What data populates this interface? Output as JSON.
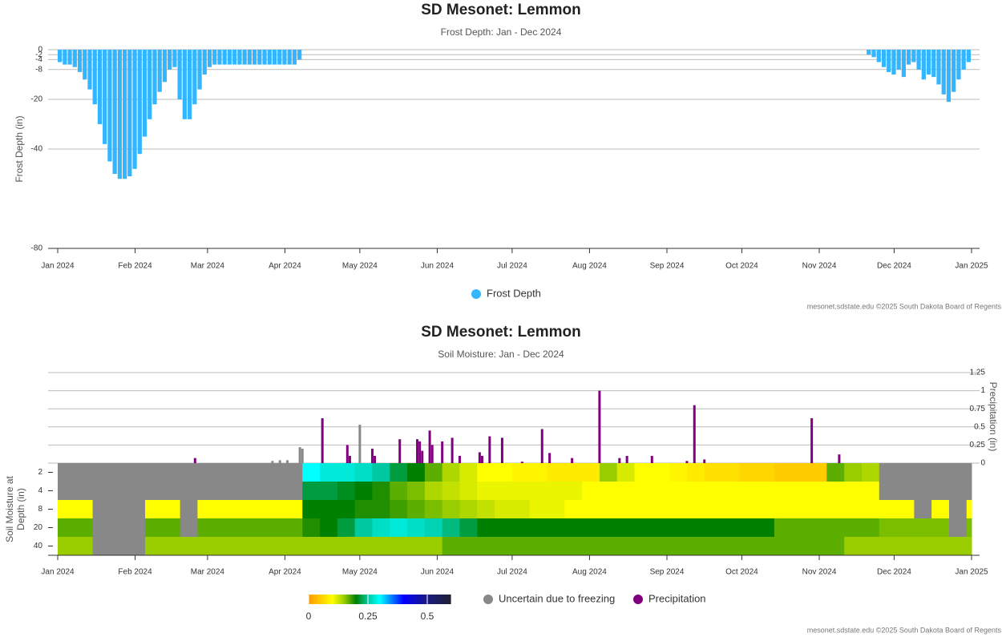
{
  "chart_data": [
    {
      "type": "bar",
      "title": "SD Mesonet: Lemmon",
      "subtitle": "Frost Depth: Jan - Dec 2024",
      "ylabel": "Frost Depth (in)",
      "xlim": [
        0,
        366
      ],
      "xticks": [
        {
          "value": 0,
          "label": "Jan 2024"
        },
        {
          "value": 31,
          "label": "Feb 2024"
        },
        {
          "value": 60,
          "label": "Mar 2024"
        },
        {
          "value": 91,
          "label": "Apr 2024"
        },
        {
          "value": 121,
          "label": "May 2024"
        },
        {
          "value": 152,
          "label": "Jun 2024"
        },
        {
          "value": 182,
          "label": "Jul 2024"
        },
        {
          "value": 213,
          "label": "Aug 2024"
        },
        {
          "value": 244,
          "label": "Sep 2024"
        },
        {
          "value": 274,
          "label": "Oct 2024"
        },
        {
          "value": 305,
          "label": "Nov 2024"
        },
        {
          "value": 335,
          "label": "Dec 2024"
        },
        {
          "value": 366,
          "label": "Jan 2025"
        }
      ],
      "ylim": [
        -80,
        0
      ],
      "yticks": [
        0,
        -2,
        -4,
        -8,
        -20,
        -40,
        -80
      ],
      "grid": true,
      "x": [
        0,
        2,
        4,
        6,
        8,
        10,
        12,
        14,
        16,
        18,
        20,
        22,
        24,
        26,
        28,
        30,
        32,
        34,
        36,
        38,
        40,
        42,
        44,
        46,
        48,
        50,
        52,
        54,
        56,
        58,
        60,
        62,
        64,
        66,
        68,
        70,
        72,
        74,
        76,
        78,
        80,
        82,
        84,
        86,
        88,
        90,
        92,
        94,
        96,
        324,
        326,
        328,
        330,
        332,
        334,
        336,
        338,
        340,
        342,
        344,
        346,
        348,
        350,
        352,
        354,
        356,
        358,
        360,
        362,
        364
      ],
      "series": [
        {
          "name": "Frost Depth",
          "color": "#33b5ff",
          "values": [
            -5,
            -6,
            -6,
            -7,
            -9,
            -12,
            -16,
            -22,
            -30,
            -38,
            -45,
            -50,
            -52,
            -52,
            -51,
            -48,
            -42,
            -35,
            -28,
            -22,
            -17,
            -13,
            -8,
            -7,
            -20,
            -28,
            -28,
            -22,
            -16,
            -10,
            -7,
            -6,
            -6,
            -6,
            -6,
            -6,
            -6,
            -6,
            -6,
            -6,
            -6,
            -6,
            -6,
            -6,
            -6,
            -6,
            -6,
            -6,
            -4,
            -2,
            -3,
            -5,
            -7,
            -9,
            -10,
            -8,
            -11,
            -6,
            -5,
            -8,
            -12,
            -10,
            -11,
            -14,
            -18,
            -21,
            -17,
            -12,
            -8,
            -5
          ]
        }
      ],
      "credit": "mesonet.sdstate.edu ©2025 South Dakota Board of Regents"
    },
    {
      "type": "heatmap",
      "title": "SD Mesonet: Lemmon",
      "subtitle": "Soil Moisture: Jan - Dec 2024",
      "ylabel": [
        "Soil Moisture at",
        "Depth (in)"
      ],
      "y2label": "Precipitation (in)",
      "xlim": [
        0,
        366
      ],
      "xticks": [
        {
          "value": 0,
          "label": "Jan 2024"
        },
        {
          "value": 31,
          "label": "Feb 2024"
        },
        {
          "value": 60,
          "label": "Mar 2024"
        },
        {
          "value": 91,
          "label": "Apr 2024"
        },
        {
          "value": 121,
          "label": "May 2024"
        },
        {
          "value": 152,
          "label": "Jun 2024"
        },
        {
          "value": 182,
          "label": "Jul 2024"
        },
        {
          "value": 213,
          "label": "Aug 2024"
        },
        {
          "value": 244,
          "label": "Sep 2024"
        },
        {
          "value": 274,
          "label": "Oct 2024"
        },
        {
          "value": 305,
          "label": "Nov 2024"
        },
        {
          "value": 335,
          "label": "Dec 2024"
        },
        {
          "value": 366,
          "label": "Jan 2025"
        }
      ],
      "categories": [
        "2",
        "4",
        "8",
        "20",
        "40"
      ],
      "x": [
        0,
        7,
        14,
        21,
        28,
        35,
        42,
        49,
        56,
        63,
        70,
        77,
        84,
        91,
        98,
        105,
        112,
        119,
        126,
        133,
        140,
        147,
        154,
        161,
        168,
        175,
        182,
        189,
        196,
        203,
        210,
        217,
        224,
        231,
        238,
        245,
        252,
        259,
        266,
        273,
        280,
        287,
        294,
        301,
        308,
        315,
        322,
        329,
        336,
        343,
        350,
        357,
        364
      ],
      "z": [
        [
          null,
          null,
          null,
          null,
          null,
          null,
          null,
          null,
          null,
          null,
          null,
          null,
          null,
          null,
          0.3,
          0.28,
          0.28,
          0.27,
          0.25,
          0.22,
          0.2,
          0.17,
          0.14,
          0.12,
          0.1,
          0.1,
          0.09,
          0.09,
          0.08,
          0.08,
          0.08,
          0.15,
          0.12,
          0.1,
          0.1,
          0.09,
          0.08,
          0.07,
          0.07,
          0.06,
          0.06,
          0.05,
          0.05,
          0.05,
          0.17,
          0.15,
          0.14,
          null,
          null,
          null,
          null,
          null,
          null
        ],
        [
          null,
          null,
          null,
          null,
          null,
          null,
          null,
          null,
          null,
          null,
          null,
          null,
          null,
          null,
          0.22,
          0.22,
          0.21,
          0.2,
          0.19,
          0.17,
          0.16,
          0.14,
          0.13,
          0.12,
          0.11,
          0.11,
          0.11,
          0.11,
          0.11,
          0.11,
          0.1,
          0.1,
          0.1,
          0.1,
          0.1,
          0.1,
          0.1,
          0.1,
          0.1,
          0.1,
          0.1,
          0.1,
          0.1,
          0.1,
          0.1,
          0.1,
          0.1,
          null,
          null,
          null,
          null,
          null,
          null
        ],
        [
          0.1,
          0.1,
          null,
          null,
          null,
          0.1,
          0.1,
          null,
          0.1,
          0.1,
          0.1,
          0.1,
          0.1,
          0.1,
          0.2,
          0.2,
          0.2,
          0.19,
          0.19,
          0.18,
          0.17,
          0.16,
          0.15,
          0.14,
          0.13,
          0.12,
          0.12,
          0.11,
          0.11,
          0.1,
          0.1,
          0.1,
          0.1,
          0.1,
          0.1,
          0.1,
          0.1,
          0.1,
          0.1,
          0.1,
          0.1,
          0.1,
          0.1,
          0.1,
          0.1,
          0.1,
          0.1,
          0.1,
          0.1,
          null,
          0.1,
          null,
          0.1
        ],
        [
          0.17,
          0.17,
          null,
          null,
          null,
          0.17,
          0.17,
          null,
          0.17,
          0.17,
          0.17,
          0.17,
          0.17,
          0.17,
          0.19,
          0.2,
          0.22,
          0.25,
          0.27,
          0.28,
          0.27,
          0.26,
          0.24,
          0.22,
          0.2,
          0.2,
          0.2,
          0.2,
          0.2,
          0.2,
          0.2,
          0.2,
          0.2,
          0.2,
          0.2,
          0.2,
          0.2,
          0.2,
          0.2,
          0.2,
          0.2,
          0.17,
          0.17,
          0.17,
          0.17,
          0.17,
          0.17,
          0.16,
          0.16,
          0.16,
          0.16,
          null,
          0.16
        ],
        [
          0.15,
          0.15,
          null,
          null,
          null,
          0.15,
          0.15,
          0.15,
          0.15,
          0.15,
          0.15,
          0.15,
          0.15,
          0.15,
          0.15,
          0.15,
          0.15,
          0.15,
          0.15,
          0.15,
          0.15,
          0.15,
          0.17,
          0.17,
          0.17,
          0.17,
          0.17,
          0.17,
          0.17,
          0.17,
          0.17,
          0.17,
          0.17,
          0.17,
          0.17,
          0.17,
          0.17,
          0.17,
          0.17,
          0.17,
          0.17,
          0.17,
          0.17,
          0.17,
          0.17,
          0.15,
          0.15,
          0.15,
          0.15,
          0.15,
          0.15,
          0.15,
          0.15
        ]
      ],
      "colorscale": [
        [
          0,
          "#ff9900"
        ],
        [
          0.1,
          "#ffff00"
        ],
        [
          0.15,
          "#9acd00"
        ],
        [
          0.2,
          "#008000"
        ],
        [
          0.25,
          "#00c8a0"
        ],
        [
          0.3,
          "#00ffff"
        ],
        [
          0.4,
          "#0000ff"
        ],
        [
          0.5,
          "#1a1a80"
        ],
        [
          0.6,
          "#202030"
        ]
      ],
      "colorbar_ticks": [
        0,
        0.25,
        0.5
      ],
      "y2lim": [
        0,
        1.25
      ],
      "y2ticks": [
        0,
        0.25,
        0.5,
        0.75,
        1,
        1.25
      ],
      "grid": true,
      "series": [
        {
          "name": "Uncertain due to freezing",
          "color": "#888888",
          "axis": "y2",
          "x": [
            86,
            89,
            92,
            97,
            98,
            121
          ],
          "values": [
            0.03,
            0.04,
            0.04,
            0.22,
            0.2,
            0.53
          ]
        },
        {
          "name": "Precipitation",
          "color": "#800080",
          "axis": "y2",
          "x": [
            55,
            106,
            116,
            117,
            126,
            127,
            137,
            144,
            145,
            146,
            149,
            150,
            154,
            158,
            161,
            169,
            170,
            173,
            178,
            186,
            194,
            197,
            206,
            217,
            225,
            228,
            238,
            252,
            255,
            259,
            302,
            313
          ],
          "values": [
            0.07,
            0.62,
            0.25,
            0.1,
            0.2,
            0.1,
            0.33,
            0.33,
            0.3,
            0.17,
            0.45,
            0.25,
            0.3,
            0.35,
            0.1,
            0.15,
            0.1,
            0.37,
            0.35,
            0.02,
            0.47,
            0.14,
            0.07,
            1.0,
            0.07,
            0.1,
            0.1,
            0.03,
            0.8,
            0.05,
            0.62,
            0.12
          ]
        }
      ],
      "credit": "mesonet.sdstate.edu ©2025 South Dakota Board of Regents"
    }
  ]
}
